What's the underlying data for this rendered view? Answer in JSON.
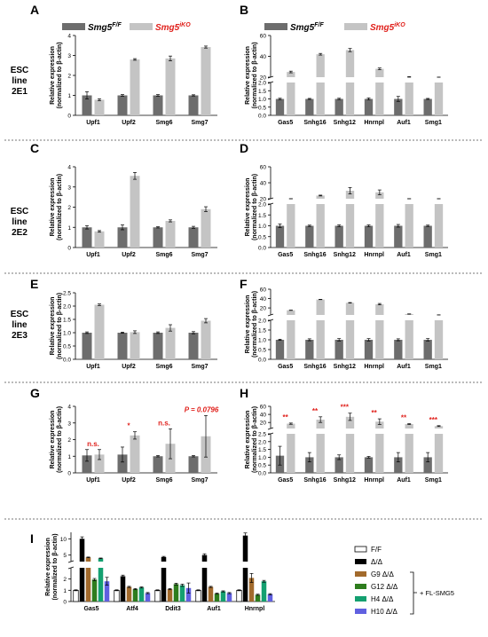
{
  "legend": {
    "ff_label": "Smg5",
    "ff_sup": "F/F",
    "iko_label": "Smg5",
    "iko_sup": "iKO",
    "ff_color": "#6d6d6d",
    "iko_color": "#c4c4c4",
    "iko_text_color": "#e0201b"
  },
  "row_labels": [
    {
      "line1": "ESC",
      "line2": "line",
      "line3": "2E1"
    },
    {
      "line1": "ESC",
      "line2": "line",
      "line3": "2E2"
    },
    {
      "line1": "ESC",
      "line2": "line",
      "line3": "2E3"
    }
  ],
  "ylabel_line1": "Relative expression",
  "ylabel_line2": "(normalized to β-actin)",
  "panel_i_legend": {
    "items": [
      {
        "label": "F/F",
        "color": "#ffffff"
      },
      {
        "label": "Δ/Δ",
        "color": "#000000"
      },
      {
        "label": "G9  Δ/Δ",
        "color": "#a26a2c"
      },
      {
        "label": "G12 Δ/Δ",
        "color": "#2e7d1e"
      },
      {
        "label": "H4  Δ/Δ",
        "color": "#14a070"
      },
      {
        "label": "H10 Δ/Δ",
        "color": "#6060e0"
      }
    ],
    "bracket_label": "+ FL-SMG5"
  },
  "chart_data": [
    {
      "panel": "A",
      "type": "bar",
      "categories": [
        "Upf1",
        "Upf2",
        "Smg6",
        "Smg7"
      ],
      "ylim": [
        0,
        4
      ],
      "yticks": [
        0,
        1,
        2,
        3,
        4
      ],
      "series": [
        {
          "name": "Smg5 F/F",
          "values": [
            1.0,
            1.0,
            1.0,
            1.0
          ],
          "errors": [
            0.18,
            0.04,
            0.04,
            0.03
          ]
        },
        {
          "name": "Smg5 iKO",
          "values": [
            0.78,
            2.8,
            2.85,
            3.42
          ],
          "errors": [
            0.05,
            0.04,
            0.12,
            0.05
          ]
        }
      ]
    },
    {
      "panel": "B",
      "type": "bar",
      "categories": [
        "Gas5",
        "Snhg16",
        "Snhg12",
        "Hnrnpl",
        "Auf1",
        "Smg1"
      ],
      "broken_axis": {
        "lower": [
          0,
          2
        ],
        "upper": [
          20,
          60
        ]
      },
      "yticks_lower": [
        0.0,
        0.5,
        1.0,
        1.5,
        2.0
      ],
      "yticks_upper": [
        20,
        40,
        60
      ],
      "series": [
        {
          "name": "Smg5 F/F",
          "values": [
            1.0,
            1.0,
            1.0,
            1.0,
            1.0,
            1.0
          ],
          "errors": [
            0.04,
            0.03,
            0.04,
            0.06,
            0.15,
            0.03
          ]
        },
        {
          "name": "Smg5 iKO",
          "values": [
            25,
            42,
            46,
            28,
            20,
            19
          ],
          "errors": [
            0.8,
            0.8,
            1.5,
            0.8,
            0.5,
            0.4
          ]
        }
      ]
    },
    {
      "panel": "C",
      "type": "bar",
      "categories": [
        "Upf1",
        "Upf2",
        "Smg6",
        "Smg7"
      ],
      "ylim": [
        0,
        4
      ],
      "yticks": [
        0,
        1,
        2,
        3,
        4
      ],
      "series": [
        {
          "name": "Smg5 F/F",
          "values": [
            1.0,
            1.0,
            1.0,
            1.0
          ],
          "errors": [
            0.08,
            0.12,
            0.03,
            0.05
          ]
        },
        {
          "name": "Smg5 iKO",
          "values": [
            0.8,
            3.55,
            1.32,
            1.9
          ],
          "errors": [
            0.04,
            0.17,
            0.05,
            0.12
          ]
        }
      ]
    },
    {
      "panel": "D",
      "type": "bar",
      "categories": [
        "Gas5",
        "Snhg16",
        "Snhg12",
        "Hnrnpl",
        "Auf1",
        "Smg1"
      ],
      "broken_axis": {
        "lower": [
          0,
          2
        ],
        "upper": [
          20,
          60
        ]
      },
      "yticks_lower": [
        0.0,
        0.5,
        1.0,
        1.5,
        2.0
      ],
      "yticks_upper": [
        20,
        40,
        60
      ],
      "series": [
        {
          "name": "Smg5 F/F",
          "values": [
            1.0,
            1.0,
            1.0,
            1.0,
            1.0,
            1.0
          ],
          "errors": [
            0.08,
            0.03,
            0.04,
            0.04,
            0.06,
            0.03
          ]
        },
        {
          "name": "Smg5 iKO",
          "values": [
            16,
            24,
            30,
            28,
            16,
            16
          ],
          "errors": [
            0.3,
            0.5,
            4,
            3,
            0.3,
            0.3
          ]
        }
      ]
    },
    {
      "panel": "E",
      "type": "bar",
      "categories": [
        "Upf1",
        "Upf2",
        "Smg6",
        "Smg7"
      ],
      "ylim": [
        0,
        2.5
      ],
      "yticks": [
        0.0,
        0.5,
        1.0,
        1.5,
        2.0,
        2.5
      ],
      "series": [
        {
          "name": "Smg5 F/F",
          "values": [
            1.0,
            1.0,
            1.0,
            1.0
          ],
          "errors": [
            0.03,
            0.02,
            0.03,
            0.04
          ]
        },
        {
          "name": "Smg5 iKO",
          "values": [
            2.05,
            1.02,
            1.18,
            1.45
          ],
          "errors": [
            0.03,
            0.05,
            0.12,
            0.08
          ]
        }
      ]
    },
    {
      "panel": "F",
      "type": "bar",
      "categories": [
        "Gas5",
        "Snhg16",
        "Snhg12",
        "Hnrnpl",
        "Auf1",
        "Smg1"
      ],
      "broken_axis": {
        "lower": [
          0,
          2
        ],
        "upper": [
          5,
          60
        ]
      },
      "yticks_lower": [
        0.0,
        0.5,
        1.0,
        1.5,
        2.0
      ],
      "yticks_upper": [
        20,
        40,
        60
      ],
      "series": [
        {
          "name": "Smg5 F/F",
          "values": [
            1.0,
            1.0,
            1.0,
            1.0,
            1.0,
            1.0
          ],
          "errors": [
            0.03,
            0.05,
            0.06,
            0.06,
            0.05,
            0.06
          ]
        },
        {
          "name": "Smg5 iKO",
          "values": [
            15,
            38,
            31,
            28,
            7,
            5
          ],
          "errors": [
            0.3,
            0.3,
            0.5,
            1.5,
            0.3,
            0.3
          ]
        }
      ]
    },
    {
      "panel": "G",
      "type": "bar",
      "categories": [
        "Upf1",
        "Upf2",
        "Smg6",
        "Smg7"
      ],
      "ylim": [
        0,
        4
      ],
      "yticks": [
        0,
        1,
        2,
        3,
        4
      ],
      "series": [
        {
          "name": "Smg5 F/F",
          "values": [
            1.05,
            1.1,
            1.0,
            1.0
          ],
          "errors": [
            0.35,
            0.45,
            0.04,
            0.04
          ]
        },
        {
          "name": "Smg5 iKO",
          "values": [
            1.1,
            2.25,
            1.75,
            2.2
          ],
          "errors": [
            0.3,
            0.22,
            0.9,
            1.25
          ]
        }
      ],
      "annotations": [
        {
          "category": "Upf1",
          "text": "n.s."
        },
        {
          "category": "Upf2",
          "text": "*"
        },
        {
          "category": "Smg6",
          "text": "n.s."
        },
        {
          "category": "Smg7",
          "text": "P = 0.0796"
        }
      ]
    },
    {
      "panel": "H",
      "type": "bar",
      "categories": [
        "Gas5",
        "Snhg16",
        "Snhg12",
        "Hnrnpl",
        "Auf1",
        "Smg1"
      ],
      "broken_axis": {
        "lower": [
          0,
          2.5
        ],
        "upper": [
          5,
          60
        ]
      },
      "yticks_lower": [
        0.0,
        0.5,
        1.0,
        1.5,
        2.0,
        2.5
      ],
      "yticks_upper": [
        20,
        40,
        60
      ],
      "series": [
        {
          "name": "Smg5 F/F",
          "values": [
            1.1,
            1.0,
            1.0,
            1.0,
            1.0,
            1.0
          ],
          "errors": [
            0.6,
            0.3,
            0.15,
            0.05,
            0.3,
            0.3
          ]
        },
        {
          "name": "Smg5 iKO",
          "values": [
            17,
            27,
            34,
            22,
            16,
            11
          ],
          "errors": [
            1.5,
            7,
            9,
            7,
            1,
            1
          ]
        }
      ],
      "annotations": [
        {
          "category": "Gas5",
          "text": "**"
        },
        {
          "category": "Snhg16",
          "text": "**"
        },
        {
          "category": "Snhg12",
          "text": "***"
        },
        {
          "category": "Hnrnpl",
          "text": "**"
        },
        {
          "category": "Auf1",
          "text": "**"
        },
        {
          "category": "Smg1",
          "text": "***"
        }
      ]
    },
    {
      "panel": "I",
      "type": "bar",
      "categories": [
        "Gas5",
        "Atf4",
        "Ddit3",
        "Auf1",
        "Hnrnpl"
      ],
      "broken_axis": {
        "lower": [
          0,
          3
        ],
        "upper": [
          3,
          12
        ]
      },
      "yticks_lower": [
        0,
        1,
        2
      ],
      "yticks_upper": [
        5,
        10
      ],
      "series": [
        {
          "name": "F/F",
          "values": [
            1.0,
            1.0,
            1.0,
            1.0,
            1.0
          ],
          "errors": [
            0.04,
            0.04,
            0.04,
            0.04,
            0.04
          ]
        },
        {
          "name": "Δ/Δ",
          "values": [
            10,
            2.25,
            4.4,
            5,
            11
          ],
          "errors": [
            0.6,
            0.1,
            0.2,
            0.4,
            0.8
          ]
        },
        {
          "name": "G9 Δ/Δ",
          "values": [
            4.3,
            1.3,
            1.1,
            1.3,
            2.1
          ],
          "errors": [
            0.1,
            0.05,
            0.05,
            0.05,
            0.4
          ]
        },
        {
          "name": "G12 Δ/Δ",
          "values": [
            1.95,
            1.1,
            1.55,
            0.7,
            0.6
          ],
          "errors": [
            0.1,
            0.05,
            0.08,
            0.05,
            0.05
          ]
        },
        {
          "name": "H4 Δ/Δ",
          "values": [
            4,
            1.25,
            1.45,
            0.9,
            1.8
          ],
          "errors": [
            0.1,
            0.05,
            0.1,
            0.05,
            0.08
          ]
        },
        {
          "name": "H10 Δ/Δ",
          "values": [
            1.8,
            0.75,
            1.2,
            0.75,
            0.65
          ],
          "errors": [
            0.35,
            0.05,
            0.45,
            0.05,
            0.05
          ]
        }
      ]
    }
  ]
}
